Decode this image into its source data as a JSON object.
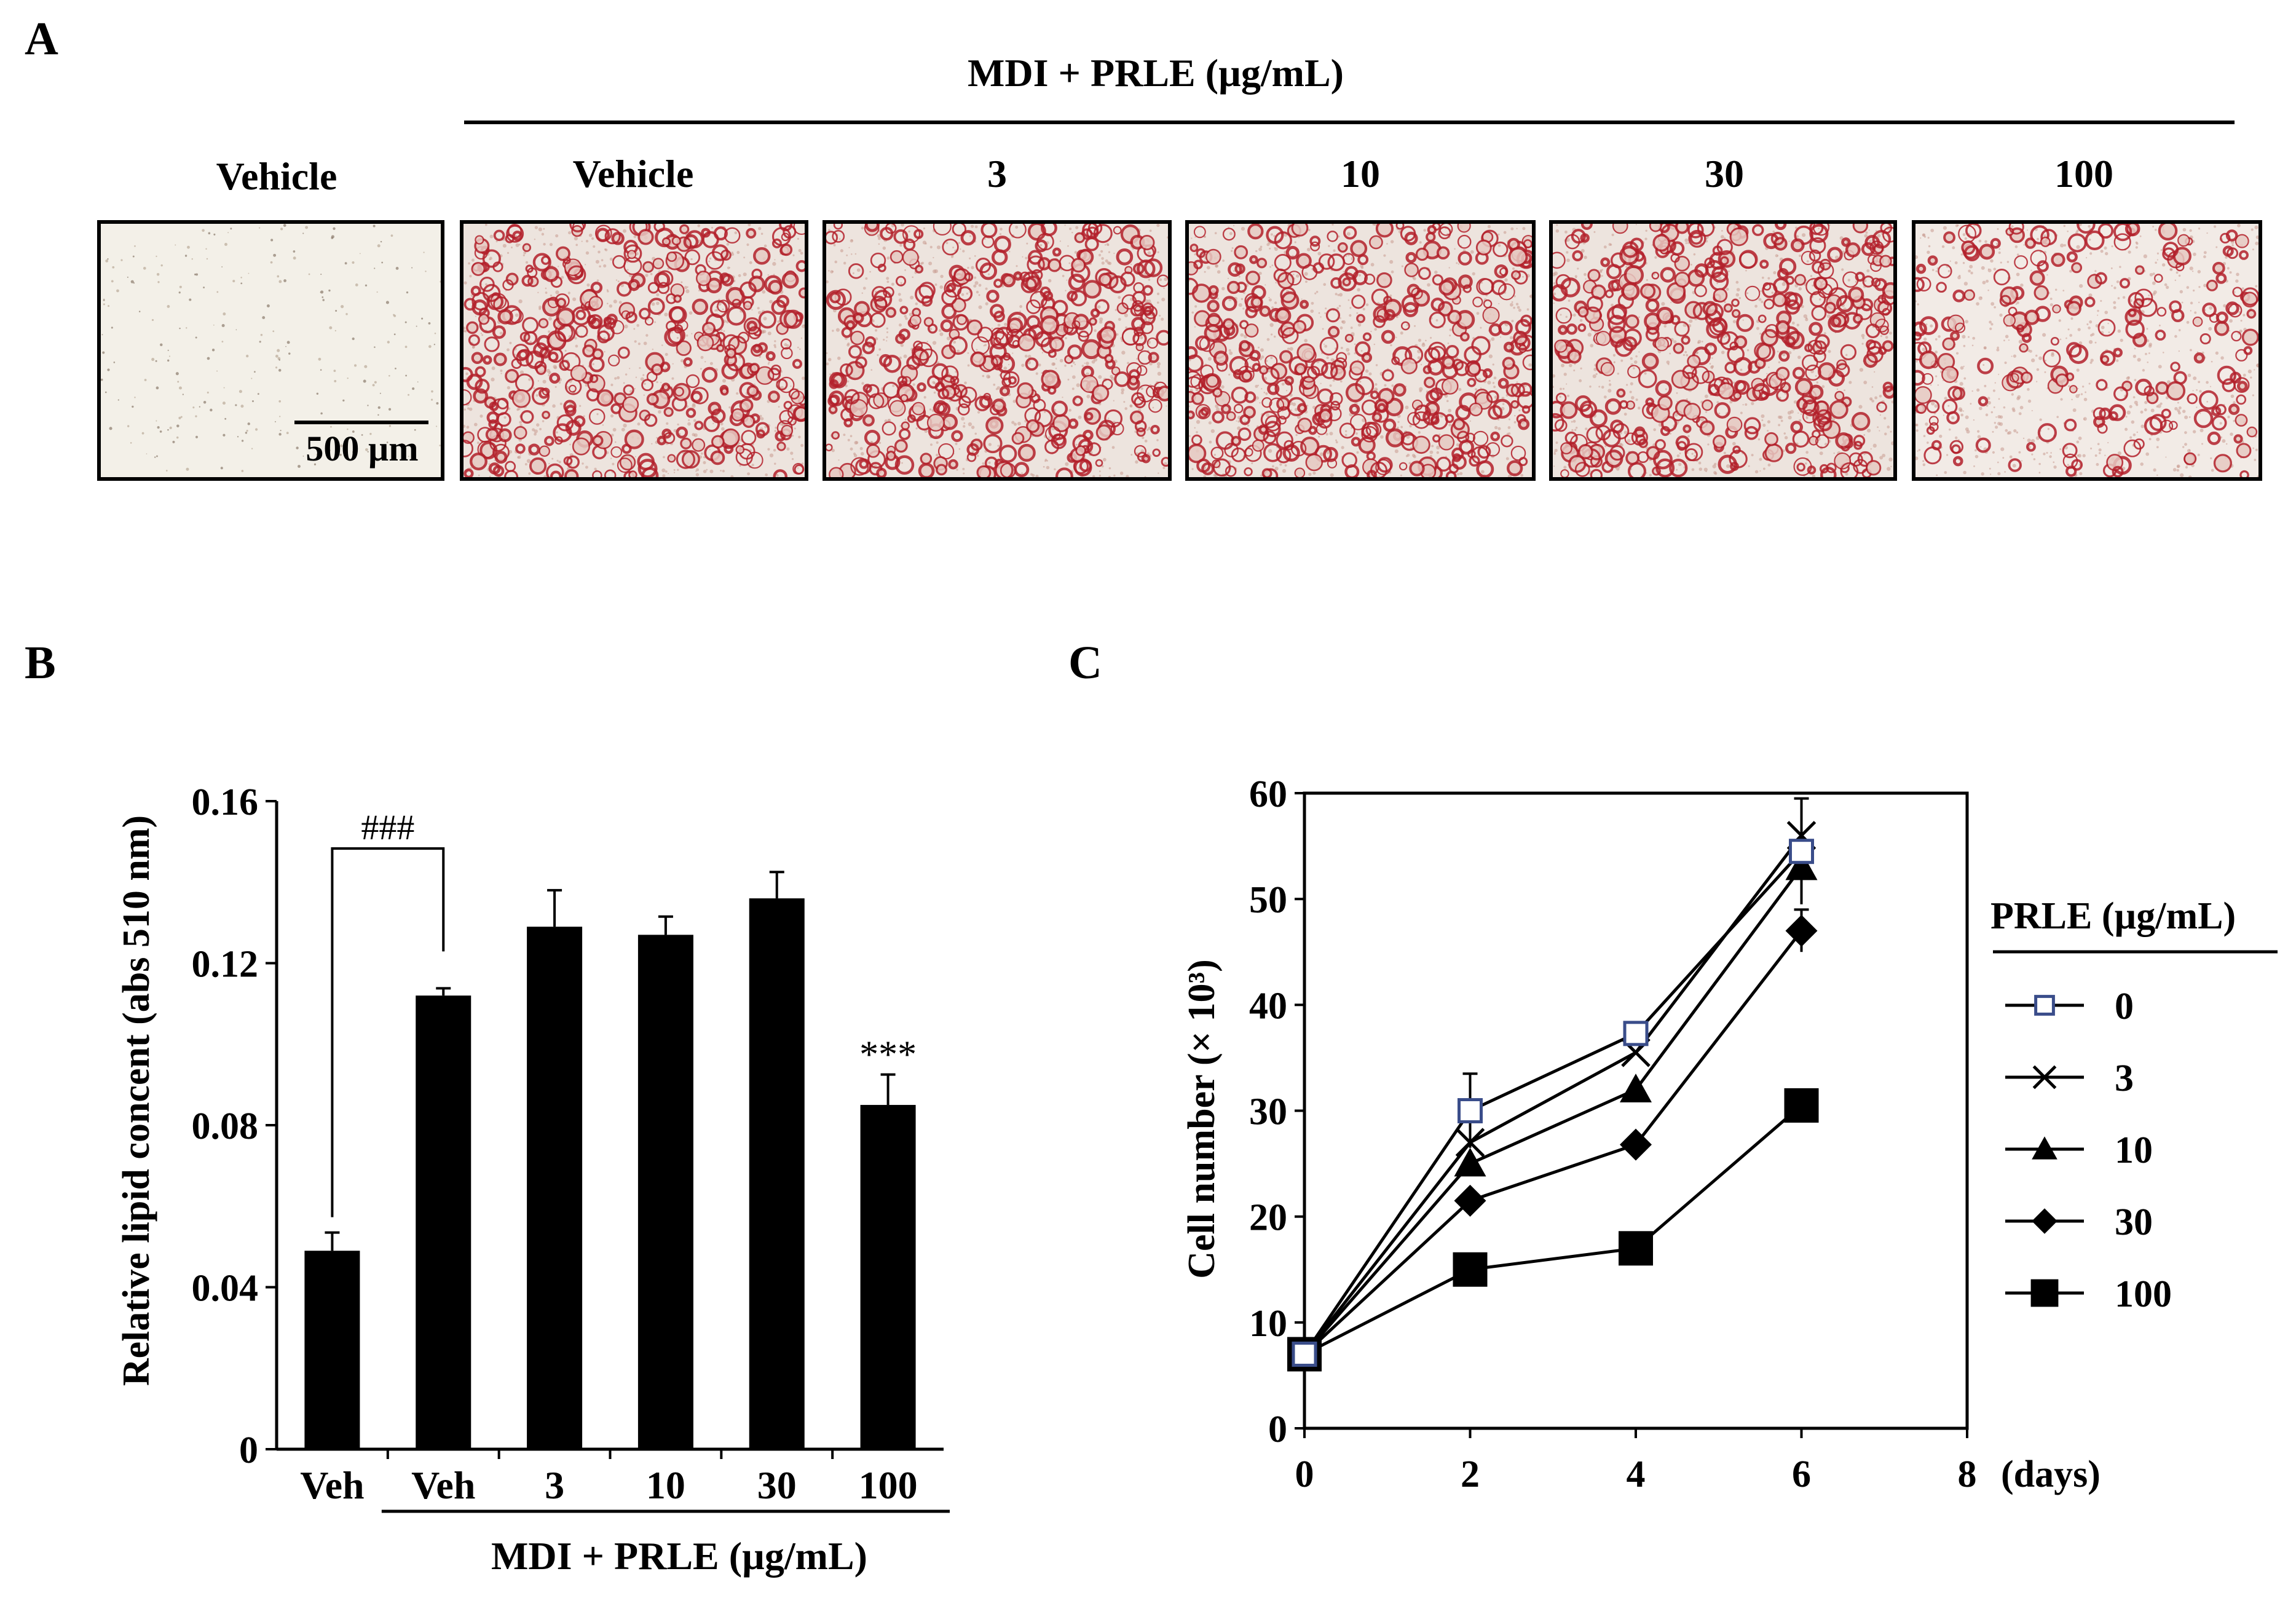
{
  "panel_a": {
    "letter": "A",
    "group_header": "MDI + PRLE (µg/mL)",
    "images": [
      {
        "label": "Vehicle",
        "stain": "none"
      },
      {
        "label": "Vehicle",
        "stain": "dense"
      },
      {
        "label": "3",
        "stain": "dense"
      },
      {
        "label": "10",
        "stain": "dense"
      },
      {
        "label": "30",
        "stain": "dense"
      },
      {
        "label": "100",
        "stain": "moderate"
      }
    ],
    "scale_bar_label": "500 µm",
    "stain_color": "#b3202a"
  },
  "panel_b": {
    "letter": "B"
  },
  "panel_c": {
    "letter": "C"
  },
  "chart_data": [
    {
      "type": "bar",
      "ylabel": "Relative lipid concent (abs 510 nm)",
      "ylim": [
        0,
        0.16
      ],
      "yticks": [
        "0",
        "0.04",
        "0.08",
        "0.12",
        "0.16"
      ],
      "categories": [
        "Veh",
        "Veh",
        "3",
        "10",
        "30",
        "100"
      ],
      "values": [
        0.049,
        0.112,
        0.129,
        0.127,
        0.136,
        0.085
      ],
      "errors": [
        0.0045,
        0.0018,
        0.009,
        0.0045,
        0.0065,
        0.0075
      ],
      "group_label": "MDI + PRLE (µg/mL)",
      "significance": {
        "bracket": "###",
        "star": "***"
      },
      "bar_color": "#000000"
    },
    {
      "type": "line",
      "ylabel": "Cell number (× 10³)",
      "xlim": [
        0,
        8
      ],
      "ylim": [
        0,
        60
      ],
      "xticks": [
        "0",
        "2",
        "4",
        "6",
        "8"
      ],
      "yticks": [
        "0",
        "10",
        "20",
        "30",
        "40",
        "50",
        "60"
      ],
      "x_unit": "(days)",
      "legend_title": "PRLE (µg/mL)",
      "legend_position": "right",
      "series": [
        {
          "name": "0",
          "marker": "open-square",
          "x": [
            0,
            2,
            4,
            6
          ],
          "y": [
            7,
            30,
            37.3,
            54.5
          ],
          "err": [
            0,
            3.5,
            1,
            5
          ]
        },
        {
          "name": "3",
          "marker": "x",
          "x": [
            0,
            2,
            4,
            6
          ],
          "y": [
            7,
            27,
            35.5,
            56
          ],
          "err": [
            0,
            0,
            0,
            0
          ]
        },
        {
          "name": "10",
          "marker": "triangle",
          "x": [
            0,
            2,
            4,
            6
          ],
          "y": [
            7,
            25,
            32,
            53
          ],
          "err": [
            0,
            0,
            0,
            0
          ]
        },
        {
          "name": "30",
          "marker": "diamond",
          "x": [
            0,
            2,
            4,
            6
          ],
          "y": [
            7,
            21.5,
            26.8,
            47
          ],
          "err": [
            0,
            0,
            0,
            2
          ]
        },
        {
          "name": "100",
          "marker": "filled-square",
          "x": [
            0,
            2,
            4,
            6
          ],
          "y": [
            7,
            15,
            17,
            30.5
          ],
          "err": [
            0,
            0,
            0,
            0
          ]
        }
      ]
    }
  ]
}
